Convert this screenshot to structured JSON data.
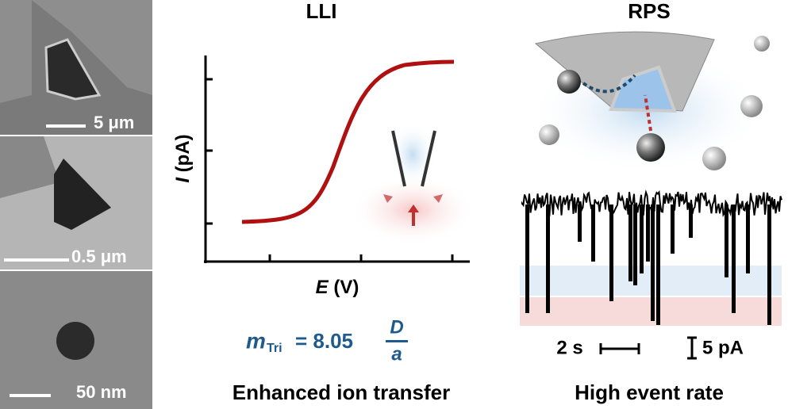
{
  "sem": {
    "scale_labels": [
      "5 μm",
      "0.5 μm",
      "50 nm"
    ]
  },
  "lli": {
    "title": "LLI",
    "y_label": {
      "symbol": "I",
      "unit": "(pA)"
    },
    "x_label": {
      "symbol": "E",
      "unit": "(V)"
    },
    "equation": {
      "symbol": "m",
      "subscript": "Tri",
      "coefficient": "= 8.05",
      "numerator": "D",
      "denominator": "a"
    },
    "caption": "Enhanced ion transfer"
  },
  "rps": {
    "title": "RPS",
    "time_scale": "2 s",
    "current_scale": "5 pA",
    "caption": "High event rate"
  }
}
